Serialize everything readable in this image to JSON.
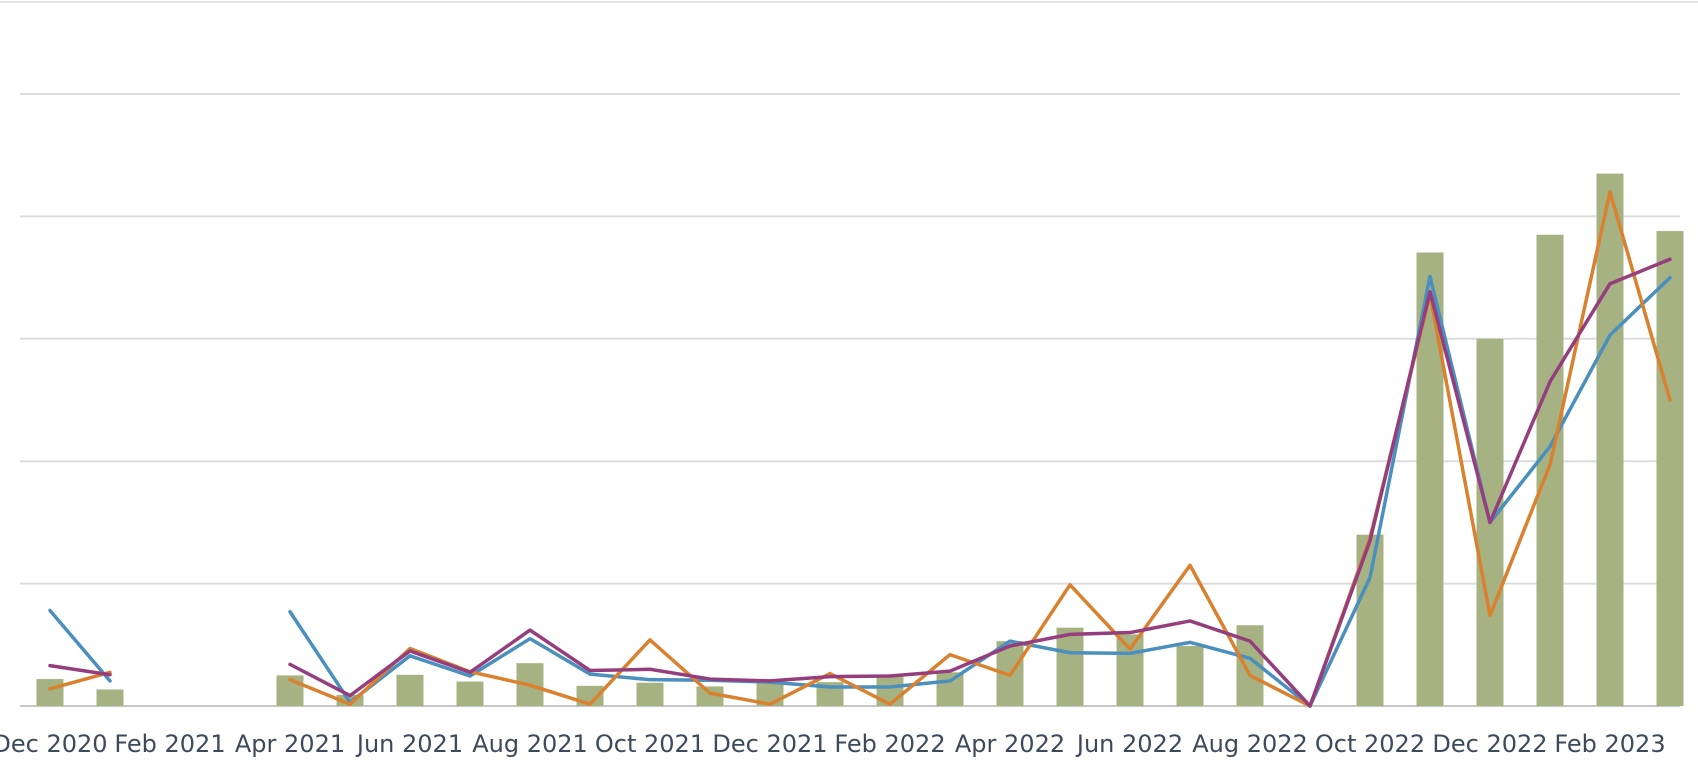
{
  "chart_data": {
    "type": "bar",
    "title": "",
    "xlabel": "",
    "ylabel": "",
    "grid": true,
    "ylim": [
      0,
      100
    ],
    "x": [
      "Dec 2020",
      "Jan 2021",
      "Feb 2021",
      "Mar 2021",
      "Apr 2021",
      "May 2021",
      "Jun 2021",
      "Jul 2021",
      "Aug 2021",
      "Sep 2021",
      "Oct 2021",
      "Nov 2021",
      "Dec 2021",
      "Jan 2022",
      "Feb 2022",
      "Mar 2022",
      "Apr 2022",
      "May 2022",
      "Jun 2022",
      "Jul 2022",
      "Aug 2022",
      "Sep 2022",
      "Oct 2022",
      "Nov 2022",
      "Dec 2022",
      "Jan 2023",
      "Feb 2023",
      "Mar 2023"
    ],
    "x_tick_labels": [
      "Dec 2020",
      "Feb 2021",
      "Apr 2021",
      "Jun 2021",
      "Aug 2021",
      "Oct 2021",
      "Dec 2021",
      "Feb 2022",
      "Apr 2022",
      "Jun 2022",
      "Aug 2022",
      "Oct 2022",
      "Dec 2022",
      "Feb 2023"
    ],
    "bars": {
      "color": "#a7b283",
      "values": [
        4.4,
        2.7,
        null,
        null,
        5.0,
        1.8,
        5.1,
        4.0,
        7.0,
        3.3,
        3.8,
        3.2,
        3.9,
        3.9,
        4.8,
        5.5,
        10.6,
        12.8,
        11.7,
        9.8,
        13.2,
        0,
        28.0,
        74.1,
        60.0,
        77.0,
        87.0,
        77.6
      ]
    },
    "series": [
      {
        "color": "#4a8fbd",
        "values": [
          15.6,
          4.1,
          null,
          null,
          15.4,
          0.6,
          8.2,
          4.9,
          11.0,
          5.2,
          4.3,
          4.2,
          3.9,
          3.1,
          3.1,
          4.1,
          10.6,
          8.7,
          8.6,
          10.4,
          7.8,
          0,
          21.0,
          70.2,
          30.0,
          42.4,
          60.6,
          70.0
        ]
      },
      {
        "color": "#d9812f",
        "values": [
          2.8,
          5.5,
          null,
          null,
          4.3,
          0.3,
          9.4,
          5.6,
          3.4,
          0.3,
          10.8,
          2.1,
          0.3,
          5.3,
          0.3,
          8.4,
          5.0,
          19.8,
          9.3,
          23.0,
          5.0,
          0,
          27.5,
          67.2,
          14.8,
          39.4,
          84.0,
          50.0
        ]
      },
      {
        "color": "#953e7e",
        "values": [
          6.6,
          5.1,
          null,
          null,
          6.8,
          1.7,
          9.0,
          5.5,
          12.4,
          5.8,
          6.0,
          4.4,
          4.1,
          4.8,
          4.9,
          5.7,
          9.8,
          11.7,
          12.0,
          13.9,
          10.6,
          0,
          27.0,
          67.7,
          30.0,
          53.0,
          69.0,
          73.0
        ]
      }
    ]
  }
}
